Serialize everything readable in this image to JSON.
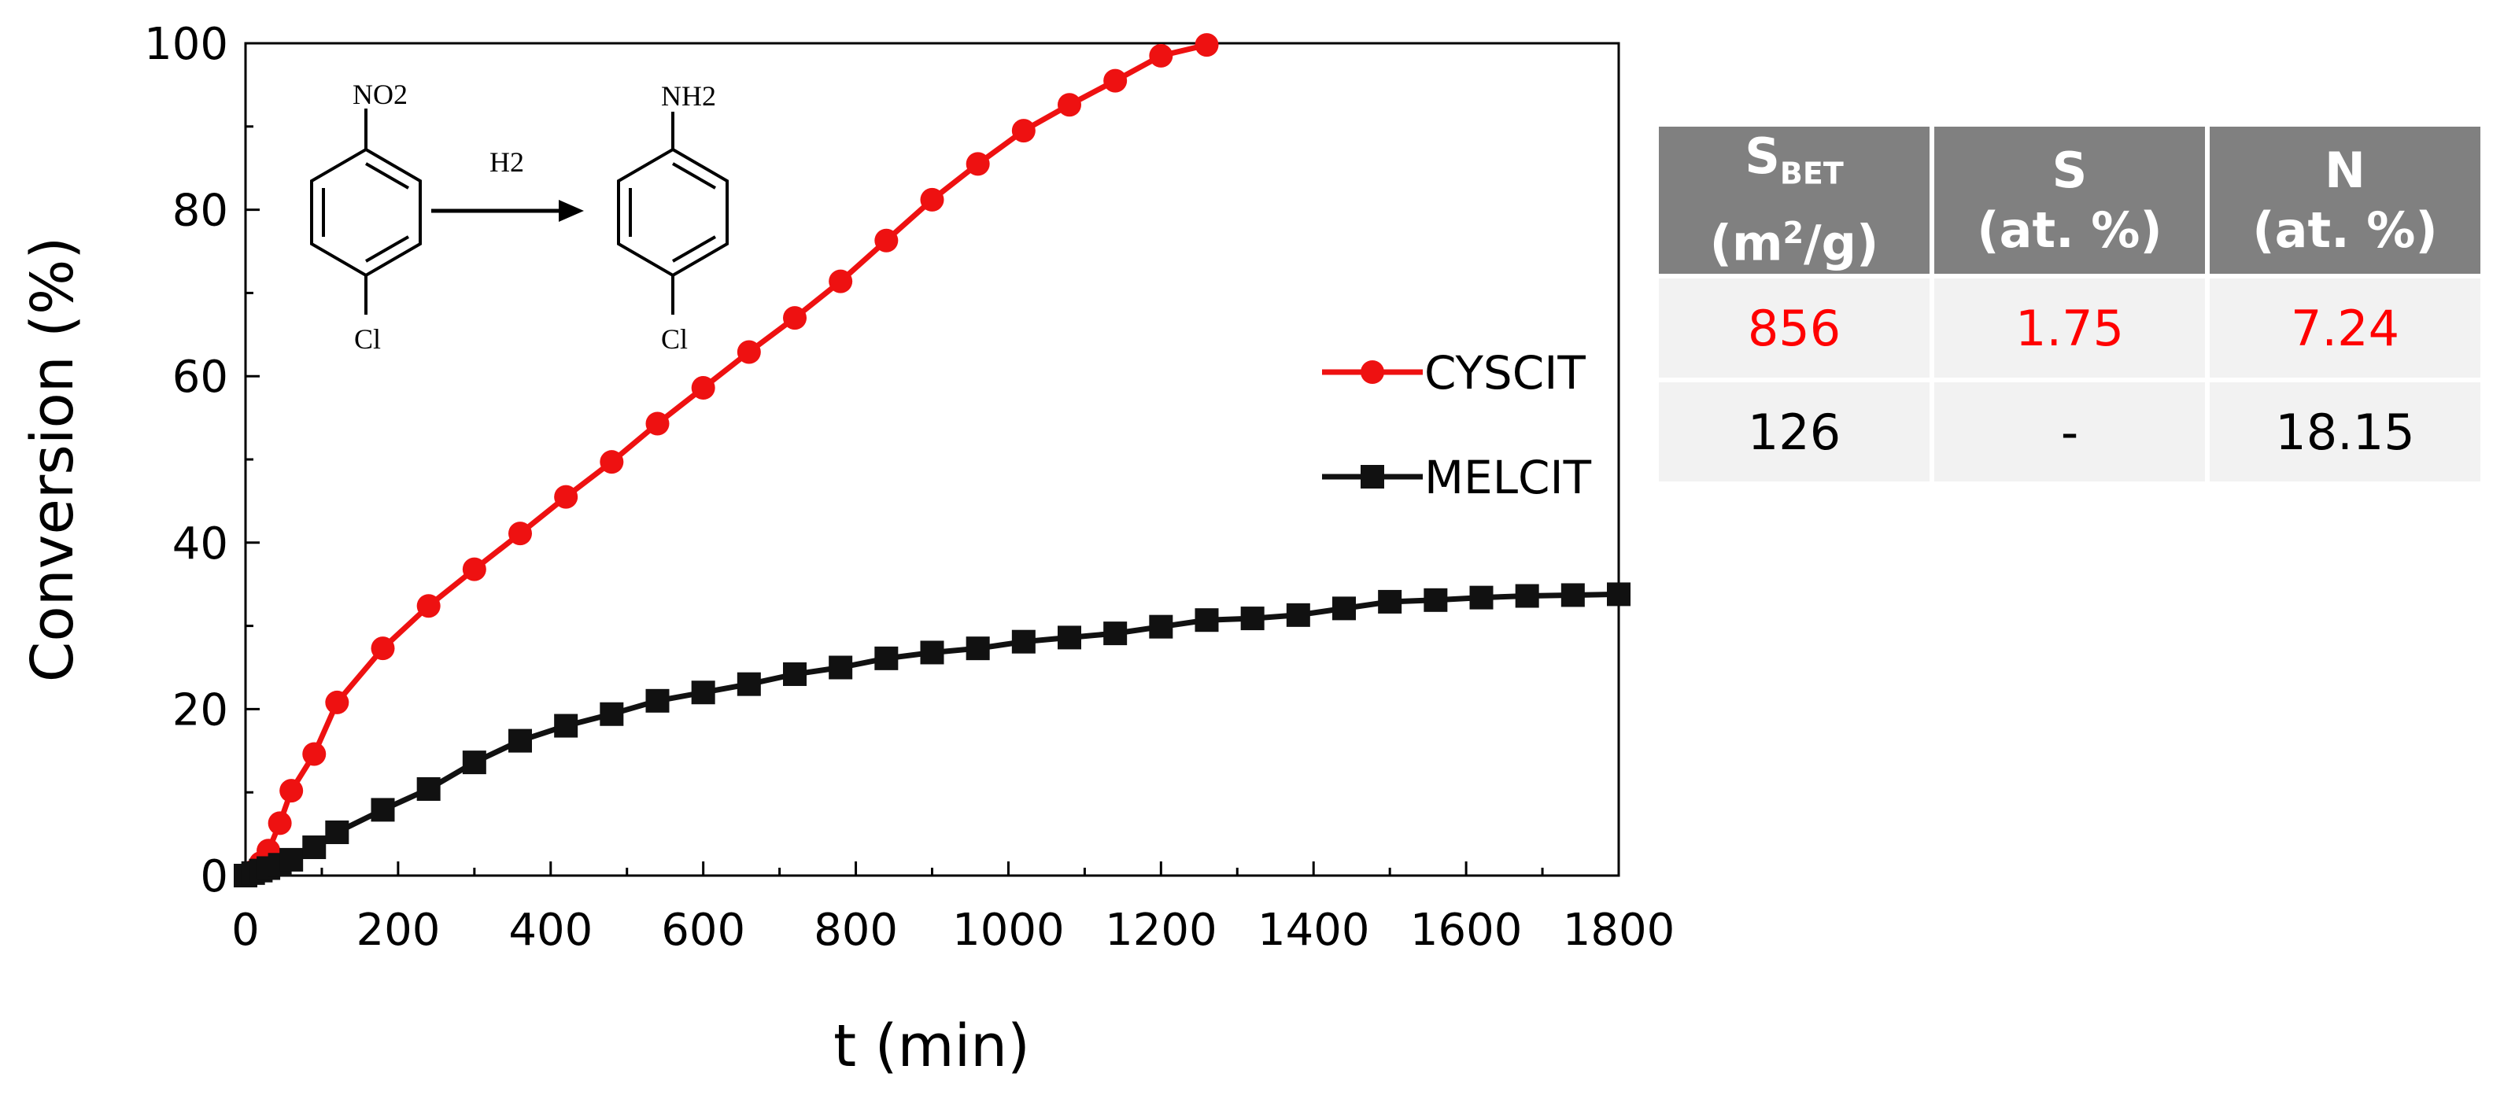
{
  "chart_data": {
    "type": "line",
    "xlabel": "t (min)",
    "ylabel": "Conversion (%)",
    "xlim": [
      0,
      1800
    ],
    "ylim": [
      0,
      100
    ],
    "xticks": [
      0,
      200,
      400,
      600,
      800,
      1000,
      1200,
      1400,
      1600,
      1800
    ],
    "yticks": [
      0,
      20,
      40,
      60,
      80,
      100
    ],
    "legend_position": "center-right",
    "series": [
      {
        "name": "CYSCIT",
        "color": "#ee1111",
        "marker": "circle",
        "x": [
          0,
          10,
          20,
          30,
          45,
          60,
          90,
          120,
          180,
          240,
          300,
          360,
          420,
          480,
          540,
          600,
          660,
          720,
          780,
          840,
          900,
          960,
          1020,
          1080,
          1140,
          1200,
          1260
        ],
        "y": [
          0,
          0.5,
          1.5,
          3,
          6.3,
          10.2,
          14.6,
          20.8,
          27.3,
          32.4,
          36.8,
          41.1,
          45.5,
          49.7,
          54.3,
          58.6,
          62.9,
          67.0,
          71.4,
          76.3,
          81.2,
          85.5,
          89.5,
          92.6,
          95.5,
          98.5,
          99.8
        ]
      },
      {
        "name": "MELCIT",
        "color": "#111111",
        "marker": "square",
        "x": [
          0,
          10,
          20,
          30,
          45,
          60,
          90,
          120,
          180,
          240,
          300,
          360,
          420,
          480,
          540,
          600,
          660,
          720,
          780,
          840,
          900,
          960,
          1020,
          1080,
          1140,
          1200,
          1260,
          1320,
          1380,
          1440,
          1500,
          1560,
          1620,
          1680,
          1740,
          1800
        ],
        "y": [
          0,
          0.3,
          0.6,
          0.9,
          1.3,
          1.9,
          3.4,
          5.2,
          7.9,
          10.4,
          13.6,
          16.2,
          18.0,
          19.4,
          21.0,
          22.0,
          23.0,
          24.2,
          25.0,
          26.1,
          26.8,
          27.3,
          28.1,
          28.6,
          29.1,
          29.9,
          30.7,
          30.9,
          31.3,
          32.1,
          32.9,
          33.1,
          33.4,
          33.6,
          33.7,
          33.8
        ]
      }
    ],
    "reaction_labels": {
      "reactant_group": "NO2",
      "product_group": "NH2",
      "substituent": "Cl",
      "reagent": "H2"
    }
  },
  "table": {
    "headers": [
      {
        "main": "S",
        "sub": "BET",
        "unit_pre": "(m",
        "unit_sup": "2",
        "unit_post": "/g)"
      },
      {
        "main": "S",
        "unit": "(at. %)"
      },
      {
        "main": "N",
        "unit": "(at. %)"
      }
    ],
    "rows": [
      {
        "color": "#ff0000",
        "cells": [
          "856",
          "1.75",
          "7.24"
        ]
      },
      {
        "color": "#000000",
        "cells": [
          "126",
          "-",
          "18.15"
        ]
      }
    ]
  }
}
